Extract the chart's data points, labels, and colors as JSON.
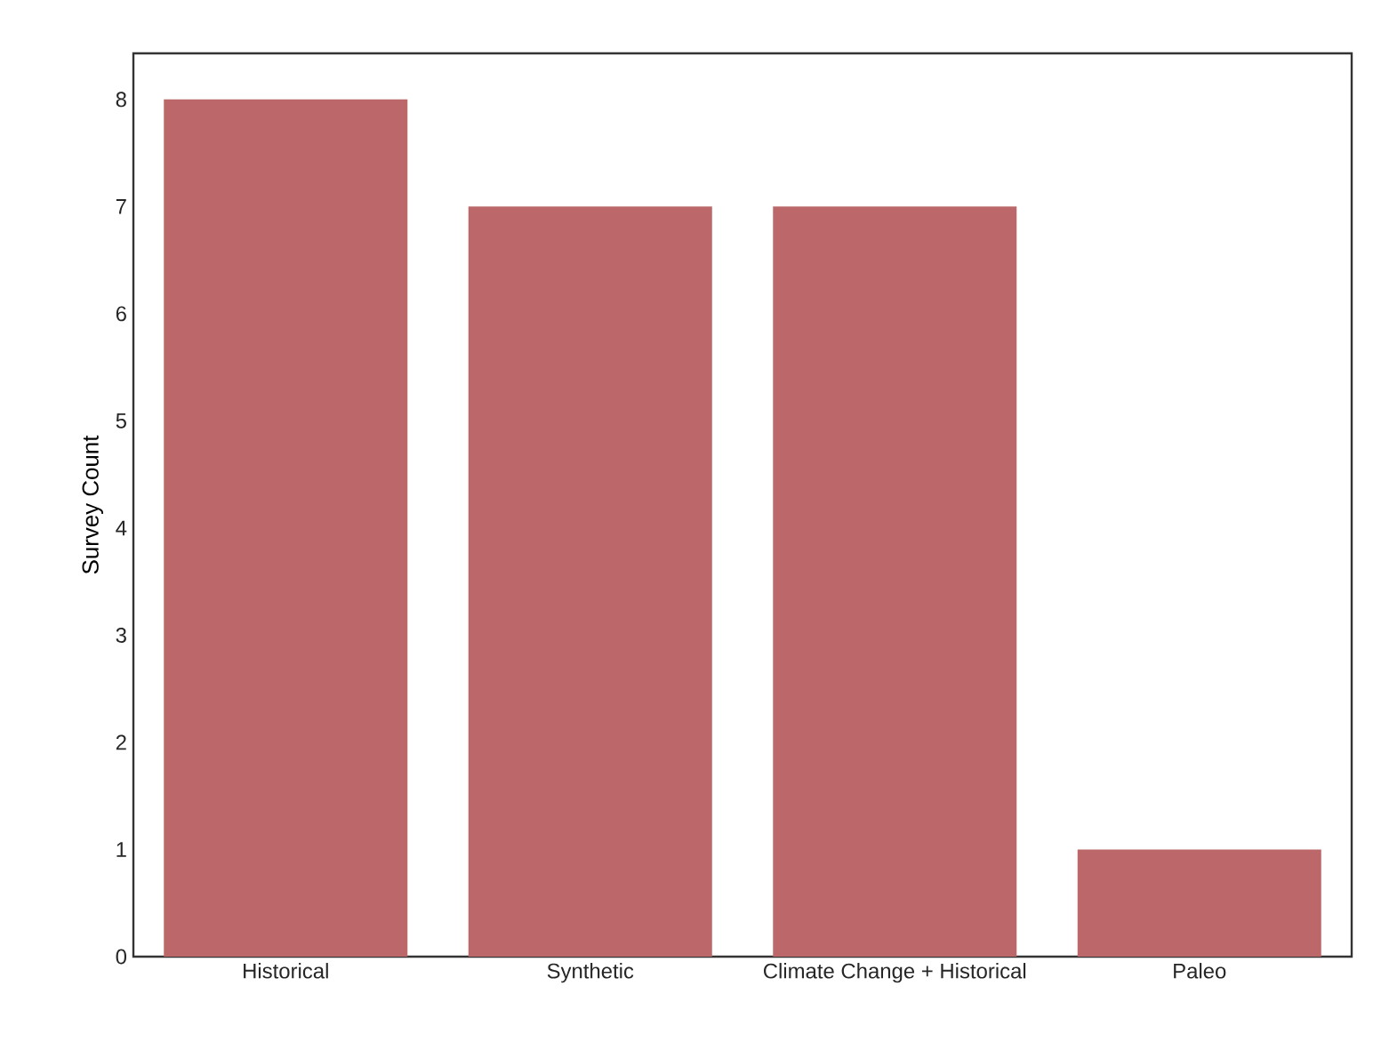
{
  "chart_data": {
    "type": "bar",
    "ylabel": "Survey Count",
    "categories": [
      "Historical",
      "Synthetic",
      "Climate Change + Historical",
      "Paleo"
    ],
    "values": [
      8,
      7,
      7,
      1
    ],
    "color": "#bc686a",
    "ylim": [
      0,
      8.43
    ],
    "yticks": [
      0,
      1,
      2,
      3,
      4,
      5,
      6,
      7,
      8
    ],
    "grid": false
  }
}
